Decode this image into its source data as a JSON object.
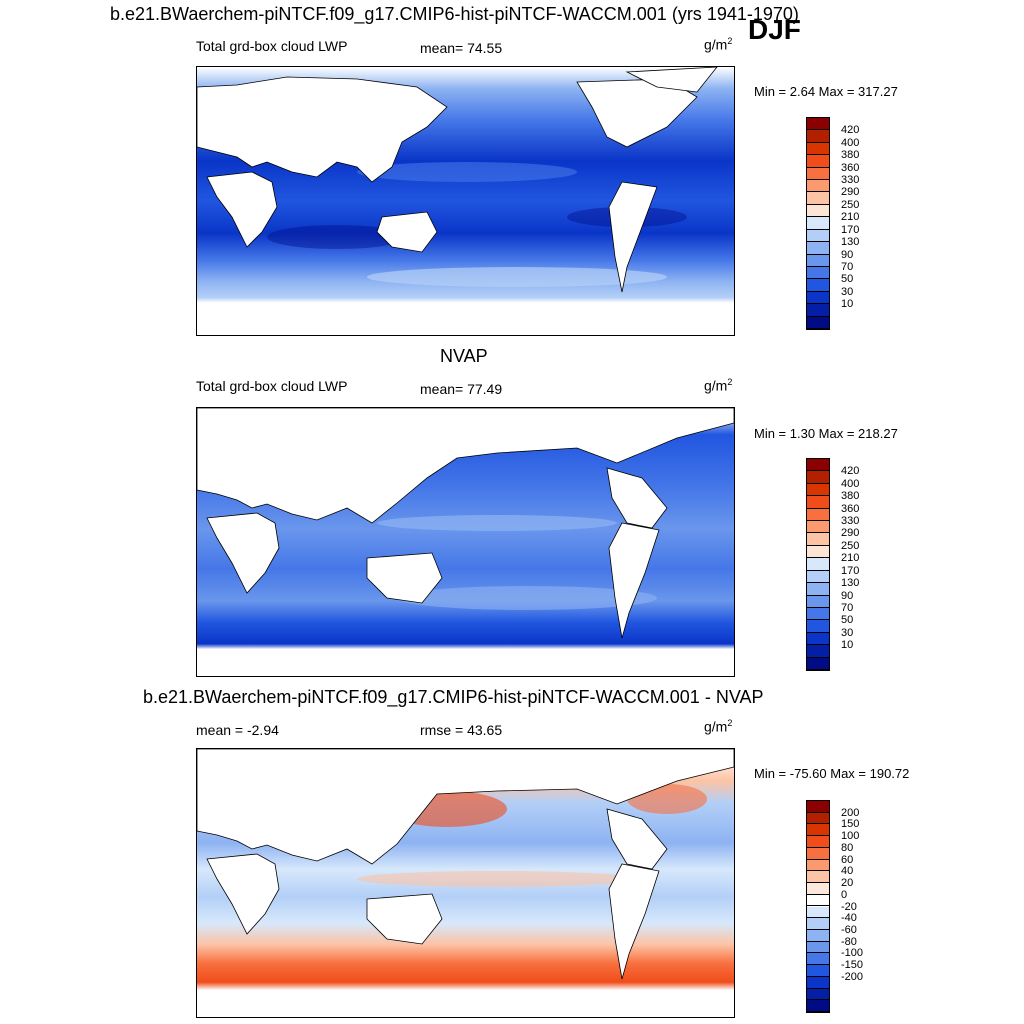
{
  "header": {
    "main_title": "b.e21.BWaerchem-piNTCF.f09_g17.CMIP6-hist-piNTCF-WACCM.001 (yrs 1941-1970)",
    "season": "DJF"
  },
  "panels": [
    {
      "title": "",
      "left_label": "Total grd-box cloud LWP",
      "center_label": "mean=  74.55",
      "units": "g/m",
      "units_sup": "2",
      "minmax": "Min =   2.64 Max = 317.27",
      "colorbar": {
        "colors": [
          "#8b0000",
          "#b22000",
          "#d93500",
          "#f04d1a",
          "#f8703f",
          "#fb9a6e",
          "#fcc3a5",
          "#fde5d6",
          "#d7e8fb",
          "#b3cff7",
          "#8eb3f2",
          "#6a96ec",
          "#4577e8",
          "#2156e0",
          "#0a35c8",
          "#041ea6",
          "#000b85"
        ],
        "labels": [
          "420",
          "400",
          "380",
          "360",
          "330",
          "290",
          "250",
          "210",
          "170",
          "130",
          "90",
          "70",
          "50",
          "30",
          "10"
        ]
      },
      "ocean_shading": {
        "colors": [
          "#000b85",
          "#0a35c8",
          "#2156e0",
          "#4577e8",
          "#6a96ec",
          "#8eb3f2",
          "#b3cff7"
        ]
      }
    },
    {
      "title": "NVAP",
      "left_label": "Total grd-box cloud LWP",
      "center_label": "mean=  77.49",
      "units": "g/m",
      "units_sup": "2",
      "minmax": "Min =   1.30 Max = 218.27",
      "colorbar": {
        "colors": [
          "#8b0000",
          "#b22000",
          "#d93500",
          "#f04d1a",
          "#f8703f",
          "#fb9a6e",
          "#fcc3a5",
          "#fde5d6",
          "#d7e8fb",
          "#b3cff7",
          "#8eb3f2",
          "#6a96ec",
          "#4577e8",
          "#2156e0",
          "#0a35c8",
          "#041ea6",
          "#000b85"
        ],
        "labels": [
          "420",
          "400",
          "380",
          "360",
          "330",
          "290",
          "250",
          "210",
          "170",
          "130",
          "90",
          "70",
          "50",
          "30",
          "10"
        ]
      }
    },
    {
      "title": "b.e21.BWaerchem-piNTCF.f09_g17.CMIP6-hist-piNTCF-WACCM.001 - NVAP",
      "left_label": "mean =  -2.94",
      "center_label": "rmse =  43.65",
      "units": "g/m",
      "units_sup": "2",
      "minmax": "Min = -75.60 Max = 190.72",
      "colorbar": {
        "colors": [
          "#8b0000",
          "#b22000",
          "#d93500",
          "#f04d1a",
          "#f8703f",
          "#fb9a6e",
          "#fcc3a5",
          "#fde9dc",
          "#ffffff",
          "#d7e8fb",
          "#b3cff7",
          "#8eb3f2",
          "#6a96ec",
          "#4577e8",
          "#2156e0",
          "#0a35c8",
          "#041ea6",
          "#000b85"
        ],
        "labels": [
          "200",
          "150",
          "100",
          "80",
          "60",
          "40",
          "20",
          "0",
          "-20",
          "-40",
          "-60",
          "-80",
          "-100",
          "-150",
          "-200"
        ]
      }
    }
  ]
}
